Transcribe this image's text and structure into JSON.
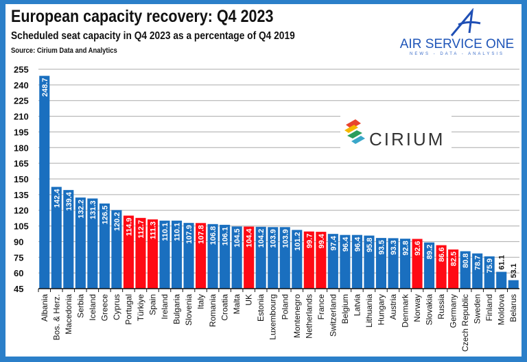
{
  "header": {
    "title": "European capacity recovery: Q4 2023",
    "subtitle": "Scheduled seat capacity in Q4 2023 as a percentage of Q4 2019",
    "source": "Source: Cirium Data and Analytics"
  },
  "logos": {
    "air_service_one": {
      "name": "AIR SERVICE ONE",
      "tagline": "NEWS - DATA - ANALYSIS"
    },
    "cirium": {
      "name": "CIRIUM"
    }
  },
  "colors": {
    "frame": "#2b7fc9",
    "default_bar": "#1a6fbf",
    "highlight_bar": "#ff0a14"
  },
  "chart_data": {
    "type": "bar",
    "title": "European capacity recovery: Q4 2023",
    "subtitle": "Scheduled seat capacity in Q4 2023 as a percentage of Q4 2019",
    "xlabel": "",
    "ylabel": "",
    "ylim": [
      45,
      255
    ],
    "yticks": [
      45,
      60,
      75,
      90,
      105,
      120,
      135,
      150,
      165,
      180,
      195,
      210,
      225,
      240,
      255
    ],
    "grid": true,
    "legend": "none",
    "categories": [
      "Albania",
      "Bos. & Herz.",
      "Macedonia",
      "Serbia",
      "Iceland",
      "Greece",
      "Cyprus",
      "Portugal",
      "Türkiye",
      "Spain",
      "Ireland",
      "Bulgaria",
      "Slovenia",
      "Italy",
      "Romania",
      "Croatia",
      "Malta",
      "UK",
      "Estonia",
      "Luxembourg",
      "Poland",
      "Montenegro",
      "Netherlands",
      "France",
      "Switzerland",
      "Belgium",
      "Latvia",
      "Lithuania",
      "Hungary",
      "Austria",
      "Denmark",
      "Norway",
      "Slovakia",
      "Russia",
      "Germany",
      "Czech Republic",
      "Sweden",
      "Finland",
      "Moldova",
      "Belarus"
    ],
    "values": [
      248.7,
      142.4,
      139.4,
      132.2,
      131.3,
      126.5,
      120.2,
      114.9,
      112.7,
      111.3,
      110.1,
      110.1,
      107.9,
      107.8,
      106.8,
      106.1,
      104.5,
      104.4,
      104.2,
      103.9,
      103.9,
      101.2,
      99.7,
      99.4,
      97.4,
      96.4,
      96.4,
      95.8,
      93.5,
      93.3,
      92.8,
      92.6,
      89.2,
      86.6,
      82.5,
      80.8,
      78.7,
      75.9,
      61.1,
      53.1
    ],
    "highlighted": [
      "Portugal",
      "Türkiye",
      "Spain",
      "Italy",
      "UK",
      "Netherlands",
      "France",
      "Norway",
      "Russia",
      "Germany"
    ]
  }
}
